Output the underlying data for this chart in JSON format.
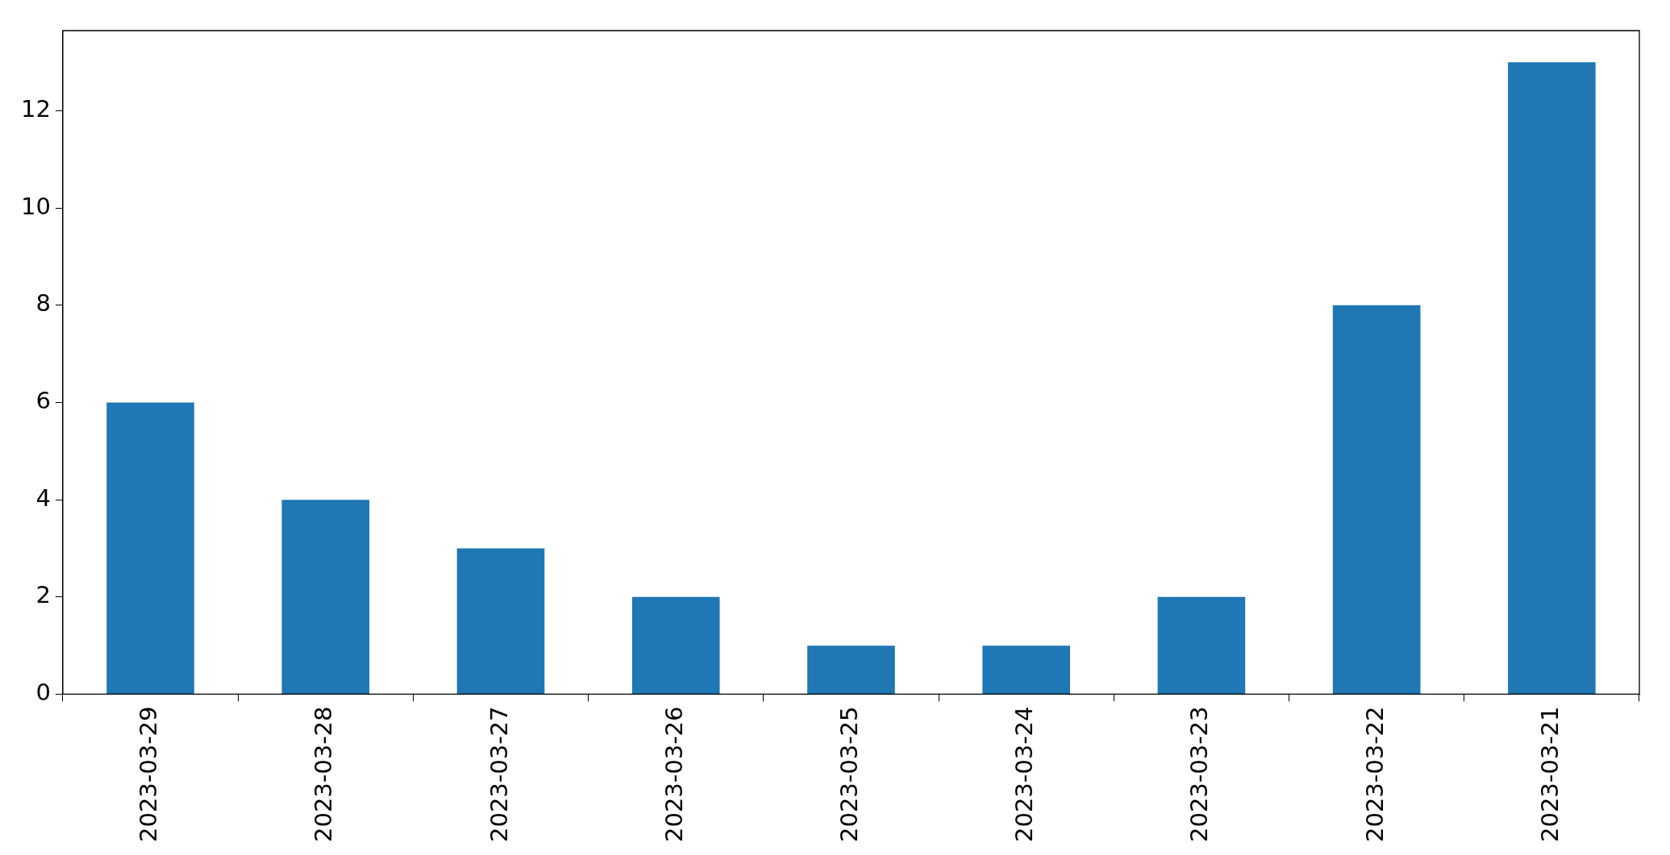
{
  "chart_data": {
    "type": "bar",
    "categories": [
      "2023-03-29",
      "2023-03-28",
      "2023-03-27",
      "2023-03-26",
      "2023-03-25",
      "2023-03-24",
      "2023-03-23",
      "2023-03-22",
      "2023-03-21"
    ],
    "values": [
      6,
      4,
      3,
      2,
      1,
      1,
      2,
      8,
      13
    ],
    "color": "#1f77b4",
    "ylim": [
      0,
      13.65
    ],
    "yticks": [
      0,
      2,
      4,
      6,
      8,
      10,
      12
    ],
    "grid": false,
    "legend": false
  }
}
